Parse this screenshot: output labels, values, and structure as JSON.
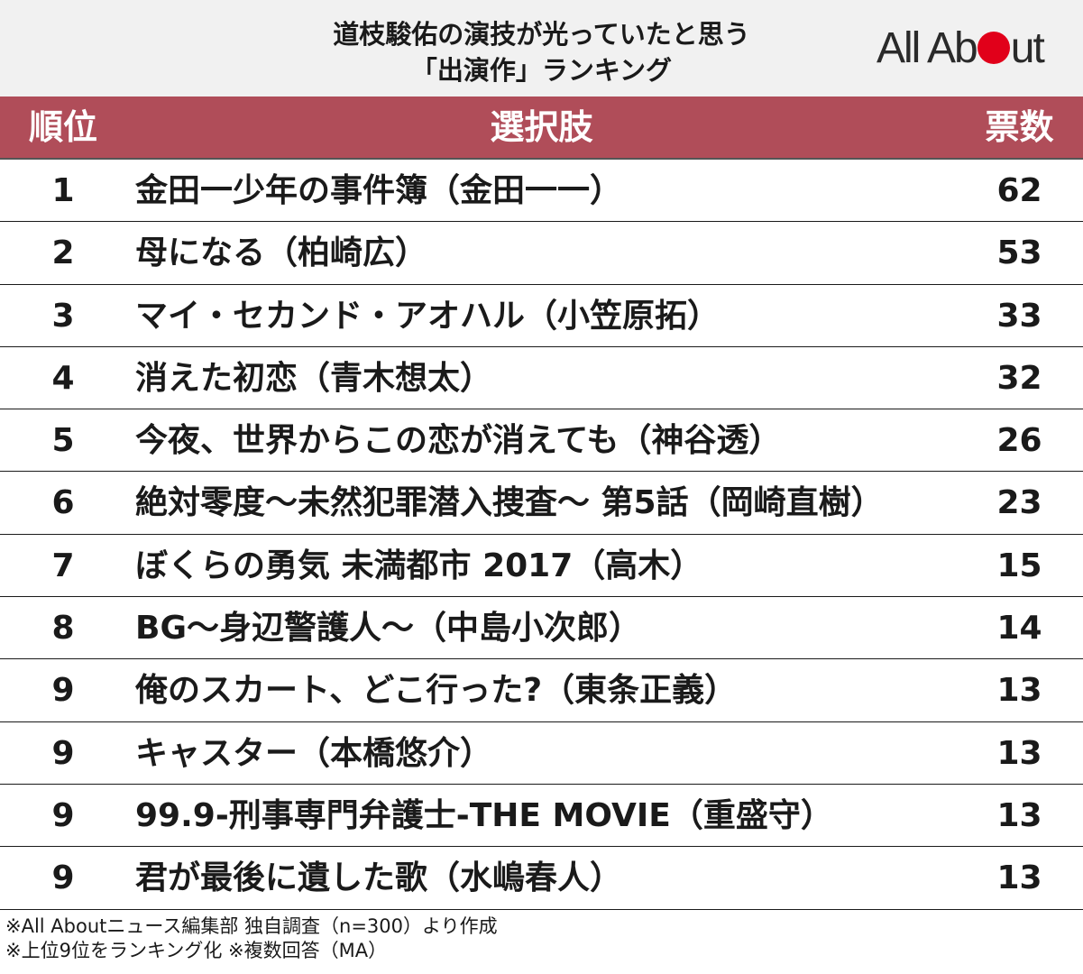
{
  "title": {
    "line1": "道枝駿佑の演技が光っていたと思う",
    "line2": "「出演作」ランキング"
  },
  "logo": {
    "part1": "All Ab",
    "part2": "ut"
  },
  "colors": {
    "header_bg": "#f1f1f1",
    "table_header_bg": "#b04d59",
    "logo_dot": "#e1001a"
  },
  "chart_data": {
    "type": "table",
    "columns": [
      "順位",
      "選択肢",
      "票数"
    ],
    "rows": [
      {
        "rank": "1",
        "choice": "金田一少年の事件簿（金田一一）",
        "votes": 62
      },
      {
        "rank": "2",
        "choice": "母になる（柏崎広）",
        "votes": 53
      },
      {
        "rank": "3",
        "choice": "マイ・セカンド・アオハル（小笠原拓）",
        "votes": 33
      },
      {
        "rank": "4",
        "choice": "消えた初恋（青木想太）",
        "votes": 32
      },
      {
        "rank": "5",
        "choice": "今夜、世界からこの恋が消えても（神谷透）",
        "votes": 26
      },
      {
        "rank": "6",
        "choice": "絶対零度～未然犯罪潜入捜査～ 第5話（岡崎直樹）",
        "votes": 23
      },
      {
        "rank": "7",
        "choice": "ぼくらの勇気 未満都市 2017（高木）",
        "votes": 15
      },
      {
        "rank": "8",
        "choice": "BG～身辺警護人～（中島小次郎）",
        "votes": 14
      },
      {
        "rank": "9",
        "choice": "俺のスカート、どこ行った?（東条正義）",
        "votes": 13
      },
      {
        "rank": "9",
        "choice": "キャスター（本橋悠介）",
        "votes": 13
      },
      {
        "rank": "9",
        "choice": "99.9-刑事専門弁護士-THE MOVIE（重盛守）",
        "votes": 13
      },
      {
        "rank": "9",
        "choice": "君が最後に遺した歌（水嶋春人）",
        "votes": 13
      }
    ]
  },
  "notes": [
    "※All Aboutニュース編集部 独自調査（n=300）より作成",
    "※上位9位をランキング化 ※複数回答（MA）"
  ]
}
